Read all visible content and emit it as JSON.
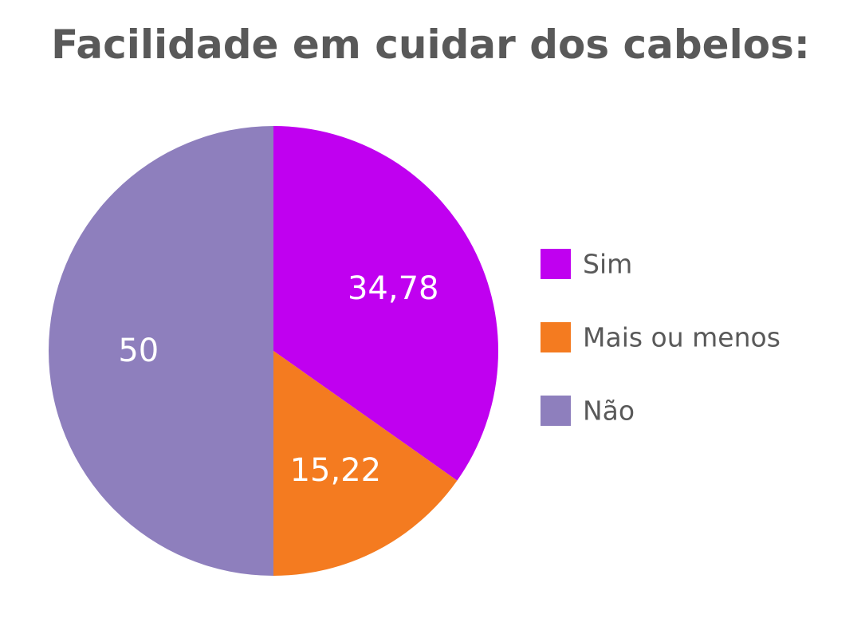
{
  "chart_data": {
    "type": "pie",
    "title": "Facilidade em cuidar dos cabelos:",
    "slices": [
      {
        "label": "Sim",
        "value": 34.78,
        "value_label": "34,78",
        "color": "#c000f0"
      },
      {
        "label": "Mais ou menos",
        "value": 15.22,
        "value_label": "15,22",
        "color": "#f47b20"
      },
      {
        "label": "Não",
        "value": 50,
        "value_label": "50",
        "color": "#8e7fbd"
      }
    ],
    "legend_position": "right"
  }
}
